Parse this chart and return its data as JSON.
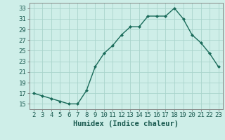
{
  "x": [
    2,
    3,
    4,
    5,
    6,
    7,
    8,
    9,
    10,
    11,
    12,
    13,
    14,
    15,
    16,
    17,
    18,
    19,
    20,
    21,
    22,
    23
  ],
  "y": [
    17,
    16.5,
    16,
    15.5,
    15,
    15,
    17.5,
    22,
    24.5,
    26,
    28,
    29.5,
    29.5,
    31.5,
    31.5,
    31.5,
    33,
    31,
    28,
    26.5,
    24.5,
    22
  ],
  "xlabel": "Humidex (Indice chaleur)",
  "ylim": [
    14,
    34
  ],
  "xlim": [
    1.5,
    23.5
  ],
  "yticks": [
    15,
    17,
    19,
    21,
    23,
    25,
    27,
    29,
    31,
    33
  ],
  "xticks": [
    2,
    3,
    4,
    5,
    6,
    7,
    8,
    9,
    10,
    11,
    12,
    13,
    14,
    15,
    16,
    17,
    18,
    19,
    20,
    21,
    22,
    23
  ],
  "line_color": "#1a6b5a",
  "marker_color": "#1a6b5a",
  "bg_color": "#ceeee8",
  "grid_color": "#aad4cc",
  "xlabel_fontsize": 7.5,
  "tick_fontsize": 6.5
}
